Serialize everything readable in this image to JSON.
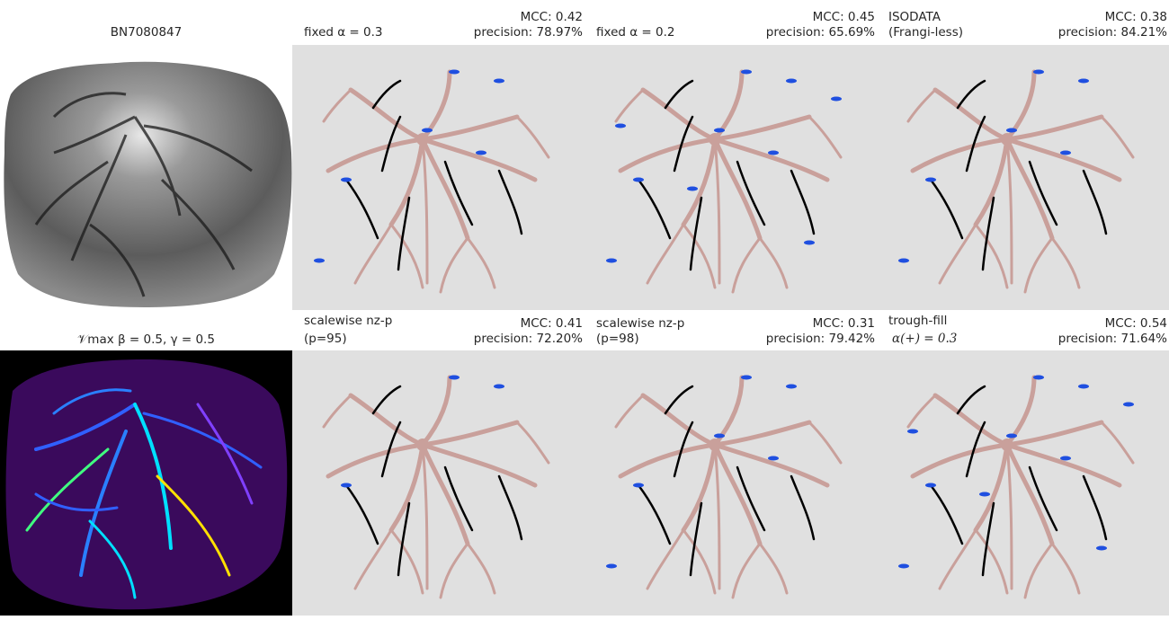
{
  "colors": {
    "panel_background": "#e0e0e0",
    "vessel_ground_truth": "#c9a09b",
    "true_positive": "#000000",
    "false_positive": "#1f4fe0"
  },
  "row1": {
    "source": {
      "title": "BN7080847"
    },
    "panels": [
      {
        "line1": "fixed α = 0.3",
        "mcc": "MCC: 0.42",
        "precision": "precision: 78.97%"
      },
      {
        "line1": "fixed α = 0.2",
        "mcc": "MCC: 0.45",
        "precision": "precision: 65.69%"
      },
      {
        "line1": "ISODATA",
        "line2": "(Frangi-less)",
        "mcc": "MCC: 0.38",
        "precision": "precision: 84.21%"
      }
    ]
  },
  "row2": {
    "source": {
      "title": "𝒱max  β = 0.5, γ = 0.5"
    },
    "panels": [
      {
        "line1": "scalewise nz-p",
        "line2": "(p=95)",
        "mcc": "MCC: 0.41",
        "precision": "precision: 72.20%"
      },
      {
        "line1": "scalewise nz-p",
        "line2": "(p=98)",
        "mcc": "MCC: 0.31",
        "precision": "precision: 79.42%"
      },
      {
        "line1": "trough-fill",
        "line2": "α(+) = 0.3",
        "mcc": "MCC: 0.54",
        "precision": "precision: 71.64%"
      }
    ]
  }
}
